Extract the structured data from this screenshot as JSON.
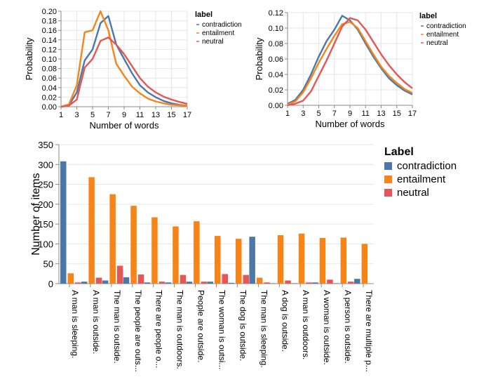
{
  "colors": {
    "contradiction": "#4c78a8",
    "entailment": "#f58518",
    "neutral": "#e45756",
    "grid": "#e6e6e6",
    "axis": "#888888"
  },
  "chart_data": [
    {
      "type": "line",
      "xlabel": "Number of words",
      "ylabel": "Probability",
      "xlim": [
        1,
        17
      ],
      "ylim": [
        0,
        0.2
      ],
      "xticks": [
        "1",
        "3",
        "5",
        "7",
        "9",
        "11",
        "13",
        "15",
        "17"
      ],
      "yticks": [
        "0.00",
        "0.02",
        "0.04",
        "0.06",
        "0.08",
        "0.10",
        "0.12",
        "0.14",
        "0.16",
        "0.18",
        "0.20"
      ],
      "grid": true,
      "legend": {
        "title": "label",
        "position": "right",
        "entries": [
          "contradiction",
          "entailment",
          "neutral"
        ]
      },
      "x": [
        1,
        2,
        3,
        4,
        5,
        6,
        7,
        8,
        9,
        10,
        11,
        12,
        13,
        14,
        15,
        16,
        17
      ],
      "series": [
        {
          "name": "contradiction",
          "values": [
            0.0,
            0.003,
            0.03,
            0.097,
            0.12,
            0.175,
            0.19,
            0.13,
            0.1,
            0.07,
            0.045,
            0.03,
            0.02,
            0.012,
            0.007,
            0.004,
            0.002
          ]
        },
        {
          "name": "entailment",
          "values": [
            0.0,
            0.005,
            0.045,
            0.156,
            0.16,
            0.2,
            0.16,
            0.09,
            0.065,
            0.042,
            0.028,
            0.017,
            0.011,
            0.007,
            0.004,
            0.003,
            0.002
          ]
        },
        {
          "name": "neutral",
          "values": [
            0.0,
            0.002,
            0.015,
            0.082,
            0.1,
            0.138,
            0.145,
            0.13,
            0.11,
            0.085,
            0.06,
            0.042,
            0.03,
            0.021,
            0.015,
            0.01,
            0.006
          ]
        }
      ]
    },
    {
      "type": "line",
      "xlabel": "Number of words",
      "ylabel": "Probability",
      "xlim": [
        1,
        17
      ],
      "ylim": [
        0,
        0.12
      ],
      "xticks": [
        "1",
        "3",
        "5",
        "7",
        "9",
        "11",
        "13",
        "15",
        "17"
      ],
      "yticks": [
        "0.00",
        "0.02",
        "0.04",
        "0.06",
        "0.08",
        "0.10",
        "0.12"
      ],
      "grid": true,
      "legend": {
        "title": "label",
        "position": "right",
        "entries": [
          "contradiction",
          "entailment",
          "neutral"
        ]
      },
      "x": [
        1,
        2,
        3,
        4,
        5,
        6,
        7,
        8,
        9,
        10,
        11,
        12,
        13,
        14,
        15,
        16,
        17
      ],
      "series": [
        {
          "name": "contradiction",
          "values": [
            0.002,
            0.007,
            0.02,
            0.04,
            0.063,
            0.083,
            0.098,
            0.116,
            0.11,
            0.098,
            0.08,
            0.063,
            0.048,
            0.035,
            0.026,
            0.019,
            0.014
          ]
        },
        {
          "name": "entailment",
          "values": [
            0.001,
            0.005,
            0.017,
            0.035,
            0.055,
            0.073,
            0.09,
            0.105,
            0.108,
            0.1,
            0.083,
            0.066,
            0.05,
            0.038,
            0.029,
            0.021,
            0.016
          ]
        },
        {
          "name": "neutral",
          "values": [
            0.0,
            0.002,
            0.006,
            0.018,
            0.038,
            0.058,
            0.08,
            0.102,
            0.113,
            0.11,
            0.098,
            0.082,
            0.066,
            0.052,
            0.04,
            0.03,
            0.022
          ]
        }
      ]
    },
    {
      "type": "bar",
      "ylabel": "Number of items",
      "ylim": [
        0,
        350
      ],
      "yticks": [
        "0",
        "50",
        "100",
        "150",
        "200",
        "250",
        "300",
        "350"
      ],
      "grid": true,
      "legend": {
        "title": "Label",
        "position": "top-right",
        "entries": [
          "contradiction",
          "entailment",
          "neutral"
        ]
      },
      "categories": [
        "A man is sleeping.",
        "A man is outside.",
        "The man is outside.",
        "The people are outs...",
        "There are people o...",
        "The man is outdoors.",
        "People are outside.",
        "The woman is outsi...",
        "The dog is outside.",
        "The man is sleeping.",
        "A dog is outside.",
        "A man is outdoors.",
        "A woman is outside.",
        "A person is outside.",
        "There are multiple p..."
      ],
      "series": [
        {
          "name": "contradiction",
          "values": [
            308,
            5,
            8,
            16,
            3,
            3,
            5,
            5,
            2,
            118,
            1,
            1,
            3,
            1,
            12
          ]
        },
        {
          "name": "entailment",
          "values": [
            26,
            268,
            225,
            196,
            167,
            144,
            157,
            120,
            113,
            15,
            122,
            126,
            115,
            116,
            100
          ]
        },
        {
          "name": "neutral",
          "values": [
            3,
            15,
            45,
            23,
            5,
            22,
            5,
            24,
            22,
            3,
            8,
            3,
            10,
            5,
            0
          ]
        }
      ]
    }
  ]
}
